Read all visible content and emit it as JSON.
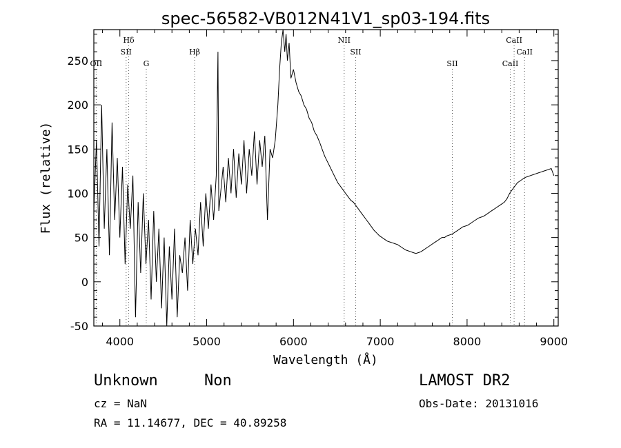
{
  "chart_data": {
    "type": "line",
    "title": "spec-56582-VB012N41V1_sp03-194.fits",
    "xlabel": "Wavelength (Å)",
    "ylabel": "Flux (relative)",
    "xlim": [
      3700,
      9050
    ],
    "ylim": [
      -50,
      285
    ],
    "x_ticks": [
      4000,
      5000,
      6000,
      7000,
      8000,
      9000
    ],
    "y_ticks": [
      -50,
      0,
      50,
      100,
      150,
      200,
      250
    ],
    "grid": false,
    "line_color": "#000000",
    "spectral_lines": [
      {
        "name": "OII",
        "wavelength": 3727,
        "row": 3
      },
      {
        "name": "Hδ",
        "wavelength": 4102,
        "row": 1
      },
      {
        "name": "SII",
        "wavelength": 4072,
        "row": 2
      },
      {
        "name": "G",
        "wavelength": 4304,
        "row": 3
      },
      {
        "name": "Hβ",
        "wavelength": 4861,
        "row": 2
      },
      {
        "name": "NII",
        "wavelength": 6584,
        "row": 1
      },
      {
        "name": "SII",
        "wavelength": 6717,
        "row": 2
      },
      {
        "name": "SII",
        "wavelength": 7830,
        "row": 3
      },
      {
        "name": "CaII",
        "wavelength": 8542,
        "row": 1
      },
      {
        "name": "CaII",
        "wavelength": 8662,
        "row": 2
      },
      {
        "name": "CaII",
        "wavelength": 8498,
        "row": 3
      }
    ],
    "series": [
      {
        "x": [
          3700,
          3730,
          3760,
          3790,
          3820,
          3850,
          3880,
          3910,
          3940,
          3970,
          4000,
          4030,
          4060,
          4090,
          4120,
          4150,
          4180,
          4210,
          4240,
          4270,
          4300,
          4330,
          4360,
          4390,
          4420,
          4450,
          4480,
          4510,
          4540,
          4570,
          4600,
          4630,
          4660,
          4690,
          4720,
          4750,
          4780,
          4810,
          4840,
          4870,
          4900,
          4930,
          4960,
          4990,
          5020,
          5050,
          5080,
          5110,
          5130,
          5140,
          5160,
          5190,
          5220,
          5250,
          5280,
          5310,
          5340,
          5370,
          5400,
          5430,
          5460,
          5490,
          5520,
          5550,
          5580,
          5610,
          5640,
          5670,
          5700,
          5730,
          5760,
          5790,
          5820,
          5840,
          5860,
          5880,
          5900,
          5915,
          5930,
          5950,
          5970,
          6000,
          6030,
          6060,
          6090,
          6120,
          6150,
          6180,
          6210,
          6240,
          6270,
          6300,
          6330,
          6360,
          6390,
          6420,
          6450,
          6480,
          6510,
          6540,
          6570,
          6600,
          6630,
          6660,
          6690,
          6720,
          6750,
          6780,
          6810,
          6840,
          6870,
          6900,
          6930,
          6960,
          6990,
          7020,
          7050,
          7080,
          7110,
          7140,
          7170,
          7200,
          7230,
          7260,
          7290,
          7320,
          7350,
          7380,
          7410,
          7440,
          7470,
          7500,
          7530,
          7560,
          7590,
          7620,
          7650,
          7680,
          7710,
          7740,
          7770,
          7800,
          7830,
          7860,
          7890,
          7920,
          7950,
          7980,
          8010,
          8040,
          8070,
          8100,
          8130,
          8160,
          8190,
          8220,
          8250,
          8280,
          8310,
          8340,
          8370,
          8400,
          8430,
          8460,
          8490,
          8520,
          8550,
          8580,
          8610,
          8640,
          8670,
          8700,
          8730,
          8760,
          8790,
          8820,
          8850,
          8880,
          8910,
          8940,
          8970,
          9000
        ],
        "y": [
          80,
          160,
          40,
          200,
          60,
          150,
          30,
          180,
          70,
          140,
          50,
          130,
          20,
          110,
          60,
          120,
          -40,
          90,
          10,
          100,
          20,
          70,
          -20,
          80,
          0,
          60,
          -30,
          50,
          -50,
          40,
          -20,
          60,
          -40,
          30,
          10,
          50,
          -10,
          70,
          20,
          60,
          30,
          90,
          40,
          100,
          60,
          110,
          70,
          120,
          260,
          80,
          100,
          130,
          90,
          140,
          100,
          150,
          95,
          145,
          110,
          160,
          100,
          150,
          120,
          170,
          110,
          160,
          130,
          165,
          70,
          150,
          140,
          160,
          200,
          240,
          270,
          285,
          260,
          280,
          250,
          270,
          230,
          240,
          225,
          215,
          210,
          200,
          195,
          185,
          180,
          170,
          165,
          158,
          150,
          142,
          136,
          130,
          124,
          118,
          112,
          108,
          104,
          100,
          96,
          92,
          90,
          86,
          82,
          78,
          74,
          70,
          66,
          62,
          58,
          55,
          52,
          50,
          48,
          46,
          45,
          44,
          43,
          42,
          40,
          38,
          36,
          35,
          34,
          33,
          32,
          33,
          34,
          36,
          38,
          40,
          42,
          44,
          46,
          48,
          50,
          50,
          52,
          53,
          54,
          56,
          58,
          60,
          62,
          63,
          64,
          66,
          68,
          70,
          72,
          73,
          74,
          76,
          78,
          80,
          82,
          84,
          86,
          88,
          90,
          94,
          100,
          104,
          108,
          112,
          114,
          116,
          118,
          119,
          120,
          121,
          122,
          123,
          124,
          125,
          126,
          127,
          128,
          120
        ]
      }
    ]
  },
  "footer": {
    "object_type": "Unknown",
    "subclass": "Non",
    "survey": "LAMOST DR2",
    "cz_text": "cz = NaN",
    "obs_date_text": "Obs-Date: 20131016",
    "coords_text": "RA =  11.14677, DEC =  40.89258"
  }
}
